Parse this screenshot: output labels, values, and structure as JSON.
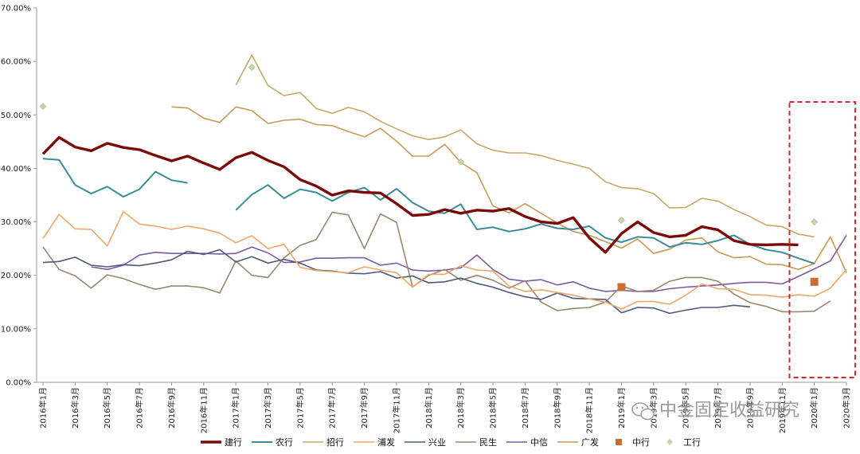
{
  "chart_data": {
    "type": "line",
    "title": "",
    "xlabel": "",
    "ylabel": "",
    "ylim": [
      0,
      70
    ],
    "y_ticks": [
      "0.00%",
      "10.00%",
      "20.00%",
      "30.00%",
      "40.00%",
      "50.00%",
      "60.00%",
      "70.00%"
    ],
    "x_tick_labels": [
      "2016年1月",
      "2016年3月",
      "2016年5月",
      "2016年7月",
      "2016年9月",
      "2016年11月",
      "2017年1月",
      "2017年3月",
      "2017年5月",
      "2017年7月",
      "2017年9月",
      "2017年11月",
      "2018年1月",
      "2018年3月",
      "2018年5月",
      "2018年7月",
      "2018年9月",
      "2018年11月",
      "2019年1月",
      "2019年3月",
      "2019年5月",
      "2019年7月",
      "2019年9月",
      "2019年11月",
      "2020年1月",
      "2020年3月"
    ],
    "grid": false,
    "legend_position": "bottom",
    "highlight_box": {
      "from_month_index": 47,
      "to_month_index": 50
    },
    "series": [
      {
        "name": "建行",
        "color": "#7b0a0a",
        "width": 3.4,
        "values": [
          42.7,
          45.8,
          44.0,
          43.3,
          44.7,
          43.9,
          43.5,
          42.4,
          41.4,
          42.3,
          41.0,
          39.8,
          42.0,
          43.0,
          41.5,
          40.3,
          37.9,
          36.7,
          35.0,
          35.8,
          35.5,
          35.4,
          33.4,
          31.2,
          31.4,
          32.3,
          31.6,
          32.2,
          32.0,
          32.5,
          31.0,
          30.0,
          29.7,
          30.8,
          27.0,
          24.3,
          27.8,
          30.0,
          28.0,
          27.2,
          27.5,
          29.1,
          28.5,
          26.5,
          25.8,
          25.7,
          25.8,
          25.7,
          null,
          null,
          null
        ]
      },
      {
        "name": "农行",
        "color": "#3a8c96",
        "width": 2,
        "values": [
          41.8,
          41.6,
          36.9,
          35.3,
          36.6,
          34.7,
          36.1,
          39.4,
          37.8,
          37.3,
          null,
          null,
          32.2,
          35.1,
          36.9,
          34.4,
          36.1,
          35.5,
          33.9,
          35.5,
          36.4,
          34.1,
          36.2,
          33.6,
          32.0,
          31.6,
          33.3,
          28.6,
          29.0,
          28.2,
          28.7,
          29.6,
          28.8,
          28.6,
          29.2,
          27.0,
          26.2,
          27.2,
          27.0,
          25.3,
          26.1,
          25.8,
          26.5,
          27.5,
          25.8,
          24.8,
          24.3,
          23.2,
          22.2,
          null,
          null
        ]
      },
      {
        "name": "招行",
        "color": "#c8a86a",
        "width": 1.6,
        "values": [
          null,
          null,
          null,
          null,
          null,
          null,
          null,
          null,
          null,
          null,
          null,
          null,
          55.6,
          61.2,
          55.5,
          53.6,
          54.2,
          51.2,
          50.3,
          51.4,
          50.6,
          48.8,
          47.4,
          46.1,
          45.4,
          45.9,
          47.2,
          44.6,
          43.4,
          42.9,
          42.9,
          42.4,
          41.5,
          40.8,
          40.0,
          37.5,
          36.4,
          36.2,
          35.3,
          32.6,
          32.7,
          34.4,
          33.9,
          32.3,
          31.0,
          29.4,
          29.1,
          27.7,
          27.2,
          null,
          null
        ]
      },
      {
        "name": "浦发",
        "color": "#eea66a",
        "width": 1.6,
        "values": [
          26.9,
          31.4,
          28.7,
          28.6,
          25.5,
          31.9,
          29.6,
          29.2,
          28.6,
          29.2,
          28.7,
          27.9,
          26.1,
          27.4,
          25.0,
          25.8,
          21.5,
          20.9,
          20.7,
          20.5,
          21.6,
          21.0,
          20.5,
          17.8,
          20.2,
          20.2,
          21.8,
          21.0,
          20.8,
          18.0,
          17.0,
          17.3,
          16.8,
          16.3,
          15.6,
          15.0,
          13.7,
          15.1,
          15.1,
          14.6,
          16.3,
          18.4,
          17.5,
          17.4,
          16.4,
          16.3,
          15.9,
          16.4,
          16.1,
          17.6,
          21.1
        ]
      },
      {
        "name": "兴业",
        "color": "#4d5a78",
        "width": 1.6,
        "values": [
          22.4,
          22.6,
          23.4,
          21.9,
          21.6,
          22.0,
          21.8,
          22.3,
          22.9,
          24.5,
          23.9,
          24.8,
          22.5,
          23.5,
          22.3,
          23.0,
          22.3,
          21.0,
          20.8,
          20.4,
          20.3,
          20.7,
          19.5,
          19.9,
          18.6,
          18.8,
          19.5,
          18.5,
          17.8,
          16.8,
          16.0,
          15.5,
          16.7,
          15.7,
          15.6,
          15.5,
          13.0,
          14.0,
          13.9,
          12.9,
          13.5,
          14.0,
          14.0,
          14.4,
          14.1,
          null,
          null,
          null,
          null,
          null,
          null
        ]
      },
      {
        "name": "民生",
        "color": "#9b8670",
        "width": 1.6,
        "values": [
          25.3,
          21.1,
          19.9,
          17.6,
          20.1,
          19.4,
          18.3,
          17.4,
          18.0,
          18.0,
          17.7,
          16.7,
          22.7,
          20.0,
          19.6,
          23.3,
          25.6,
          26.7,
          31.8,
          31.3,
          25.0,
          31.5,
          29.9,
          17.8,
          20.0,
          21.1,
          19.1,
          20.0,
          19.1,
          17.6,
          19.0,
          15.0,
          13.4,
          13.8,
          14.0,
          15.0,
          18.0,
          17.0,
          17.2,
          18.9,
          19.6,
          19.6,
          18.9,
          16.5,
          14.9,
          14.2,
          13.2,
          13.2,
          13.3,
          15.2,
          null
        ]
      },
      {
        "name": "中信",
        "color": "#7e5aa2",
        "width": 1.6,
        "values": [
          null,
          null,
          null,
          21.6,
          21.1,
          21.9,
          23.8,
          24.3,
          24.1,
          24.1,
          24.1,
          24.0,
          24.1,
          25.3,
          24.2,
          22.4,
          22.5,
          23.2,
          23.2,
          23.3,
          23.3,
          21.9,
          22.3,
          21.0,
          20.8,
          21.0,
          21.4,
          23.8,
          21.1,
          19.3,
          18.9,
          19.2,
          18.2,
          18.8,
          17.6,
          17.0,
          17.2,
          17.0,
          17.0,
          17.5,
          17.8,
          18.0,
          18.2,
          18.5,
          18.7,
          18.7,
          18.4,
          19.8,
          21.2,
          22.7,
          27.5
        ]
      },
      {
        "name": "广发",
        "color": "#c79a55",
        "width": 1.6,
        "values": [
          null,
          null,
          null,
          null,
          null,
          null,
          null,
          null,
          51.5,
          51.3,
          49.4,
          48.6,
          51.5,
          50.8,
          48.4,
          49.0,
          49.2,
          48.2,
          48.0,
          46.9,
          45.9,
          47.5,
          45.1,
          42.3,
          42.3,
          44.5,
          41.1,
          39.2,
          33.0,
          31.7,
          33.4,
          31.6,
          29.8,
          28.2,
          27.5,
          26.3,
          25.1,
          26.8,
          24.1,
          24.9,
          26.6,
          27.0,
          24.4,
          23.3,
          23.5,
          22.1,
          22.0,
          21.1,
          22.2,
          27.2,
          20.5
        ]
      }
    ],
    "square_markers": {
      "name": "中行",
      "color": "#c86e36",
      "points": [
        {
          "month_index": 36,
          "value": 17.8
        },
        {
          "month_index": 48,
          "value": 18.8
        }
      ]
    },
    "diamond_markers": {
      "name": "工行",
      "color": "#c7d6a8",
      "points": [
        {
          "month_index": 0,
          "value": 51.6
        },
        {
          "month_index": 13,
          "value": 58.9
        },
        {
          "month_index": 26,
          "value": 41.2
        },
        {
          "month_index": 36,
          "value": 30.3
        },
        {
          "month_index": 48,
          "value": 30.0
        }
      ]
    }
  },
  "watermark": {
    "icon": "wechat-icon",
    "text": "中金固定收益研究"
  }
}
